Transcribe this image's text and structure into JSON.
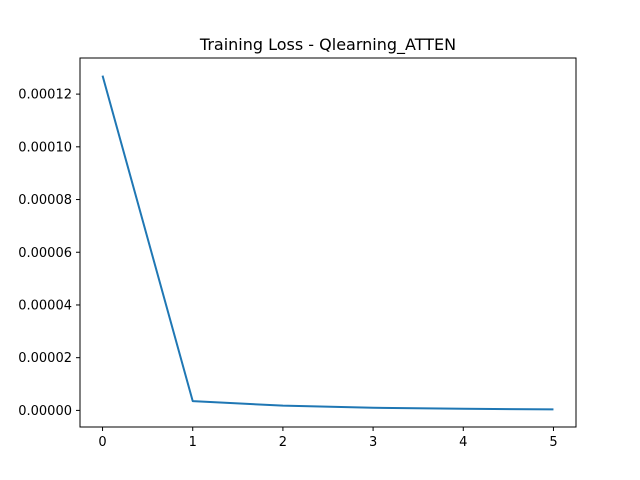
{
  "chart_data": {
    "type": "line",
    "title": "Training Loss - Qlearning_ATTEN",
    "xlabel": "",
    "ylabel": "",
    "x": [
      0,
      1,
      2,
      3,
      4,
      5
    ],
    "series": [
      {
        "values": [
          0.000127,
          3.5e-06,
          1.8e-06,
          1e-06,
          6e-07,
          4e-07
        ],
        "color": "#1f77b4"
      }
    ],
    "xticks": [
      0,
      1,
      2,
      3,
      4,
      5
    ],
    "xtick_labels": [
      "0",
      "1",
      "2",
      "3",
      "4",
      "5"
    ],
    "yticks": [
      0,
      2e-05,
      4e-05,
      6e-05,
      8e-05,
      0.0001,
      0.00012
    ],
    "ytick_labels": [
      "0.00000",
      "0.00002",
      "0.00004",
      "0.00006",
      "0.00008",
      "0.00010",
      "0.00012"
    ],
    "xlim": [
      -0.25,
      5.25
    ],
    "ylim": [
      -6.3e-06,
      0.0001337
    ],
    "grid": false,
    "legend": "none"
  }
}
